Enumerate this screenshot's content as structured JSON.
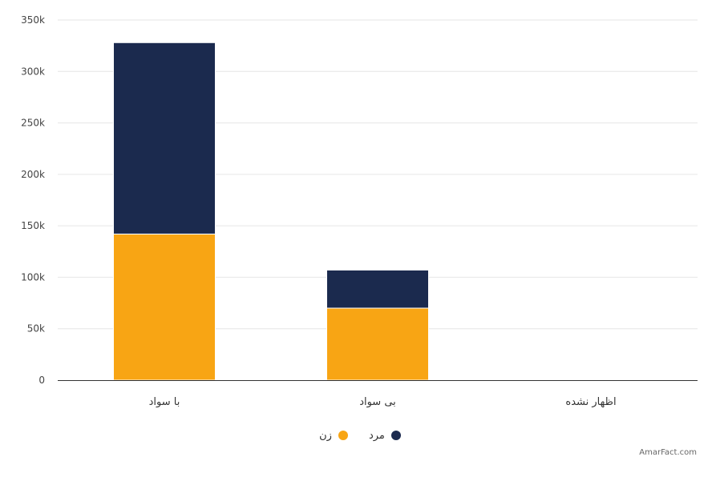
{
  "chart_data": {
    "type": "bar",
    "stacked": true,
    "categories": [
      "با سواد",
      "بی سواد",
      "اظهار نشده"
    ],
    "series": [
      {
        "name": "مرد",
        "color": "#1b2a4e",
        "values": [
          186000,
          37000,
          200
        ]
      },
      {
        "name": "زن",
        "color": "#f8a514",
        "values": [
          142000,
          70000,
          300
        ]
      }
    ],
    "y_ticks": [
      "0",
      "50k",
      "100k",
      "150k",
      "200k",
      "250k",
      "300k",
      "350k"
    ],
    "ylim": [
      0,
      350000
    ],
    "grid": true,
    "legend_position": "bottom-center",
    "title": "",
    "xlabel": "",
    "ylabel": ""
  },
  "credit": "AmarFact.com"
}
